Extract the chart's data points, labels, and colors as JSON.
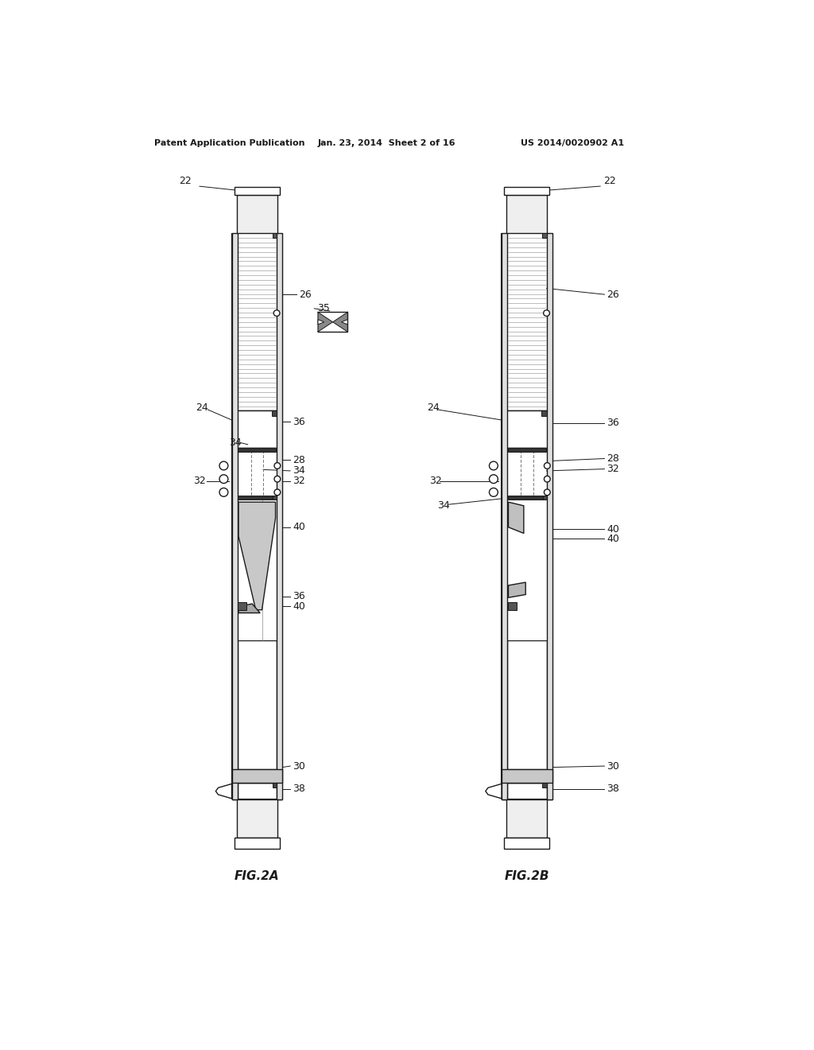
{
  "bg_color": "#ffffff",
  "header_left": "Patent Application Publication",
  "header_center": "Jan. 23, 2014  Sheet 2 of 16",
  "header_right": "US 2014/0020902 A1",
  "fig2a_label": "FIG.2A",
  "fig2b_label": "FIG.2B",
  "lc": "#1a1a1a",
  "gray_light": "#d8d8d8",
  "gray_med": "#b0b0b0",
  "gray_dark": "#707070",
  "gray_black": "#333333",
  "screen_line_color": "#999999",
  "hatch_line_color": "#888888"
}
